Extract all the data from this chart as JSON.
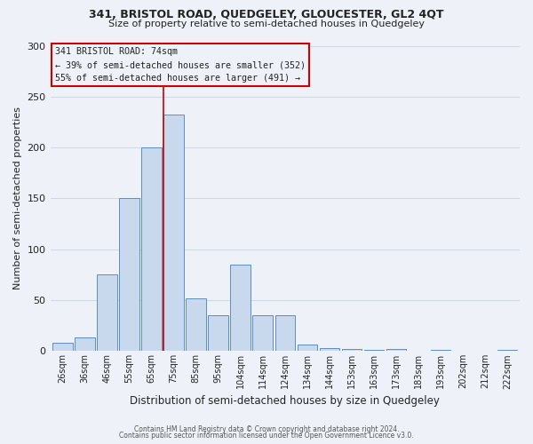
{
  "title1": "341, BRISTOL ROAD, QUEDGELEY, GLOUCESTER, GL2 4QT",
  "title2": "Size of property relative to semi-detached houses in Quedgeley",
  "xlabel": "Distribution of semi-detached houses by size in Quedgeley",
  "ylabel": "Number of semi-detached properties",
  "footer1": "Contains HM Land Registry data © Crown copyright and database right 2024.",
  "footer2": "Contains public sector information licensed under the Open Government Licence v3.0.",
  "bar_labels": [
    "26sqm",
    "36sqm",
    "46sqm",
    "55sqm",
    "65sqm",
    "75sqm",
    "85sqm",
    "95sqm",
    "104sqm",
    "114sqm",
    "124sqm",
    "134sqm",
    "144sqm",
    "153sqm",
    "163sqm",
    "173sqm",
    "183sqm",
    "193sqm",
    "202sqm",
    "212sqm",
    "222sqm"
  ],
  "bar_values": [
    8,
    13,
    75,
    150,
    200,
    232,
    52,
    35,
    85,
    35,
    35,
    6,
    3,
    2,
    1,
    2,
    0,
    1,
    0,
    0,
    1
  ],
  "bar_color": "#c9d9ed",
  "bar_edge_color": "#5b8ec4",
  "property_label": "341 BRISTOL ROAD: 74sqm",
  "annotation_line1": "← 39% of semi-detached houses are smaller (352)",
  "annotation_line2": "55% of semi-detached houses are larger (491) →",
  "vline_index": 5,
  "vline_color": "#cc0000",
  "ylim": [
    0,
    300
  ],
  "yticks": [
    0,
    50,
    100,
    150,
    200,
    250,
    300
  ],
  "box_color": "#cc0000",
  "background_color": "#eef2f8",
  "grid_color": "#d0d8e8"
}
